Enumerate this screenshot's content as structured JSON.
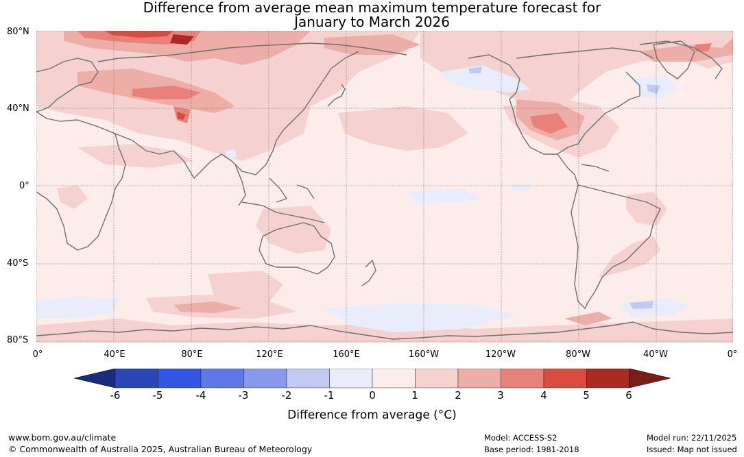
{
  "title": {
    "line1": "Difference from average mean maximum temperature forecast for",
    "line2": "January to March 2026"
  },
  "axes": {
    "lat_labels": [
      "80°N",
      "40°N",
      "0°",
      "40°S",
      "80°S"
    ],
    "lon_labels": [
      "0°",
      "40°E",
      "80°E",
      "120°E",
      "160°E",
      "160°W",
      "120°W",
      "80°W",
      "40°W",
      "0°"
    ]
  },
  "colorbar": {
    "title": "Difference from average (°C)",
    "ticks": [
      "-6",
      "-5",
      "-4",
      "-3",
      "-2",
      "-1",
      "0",
      "1",
      "2",
      "3",
      "4",
      "5",
      "6"
    ],
    "colors": [
      "#1b2a7a",
      "#2a46b8",
      "#3354e4",
      "#5f78e6",
      "#8898ea",
      "#c1caf2",
      "#e9edfb",
      "#fcecea",
      "#f5d2cf",
      "#eeaea8",
      "#e7817a",
      "#d94c40",
      "#ab2a22",
      "#7a1d17"
    ]
  },
  "footer": {
    "website": "www.bom.gov.au/climate",
    "copyright": "© Commonwealth of Australia 2025, Australian Bureau of Meteorology",
    "model": "Model: ACCESS-S2",
    "base_period": "Base period: 1981-2018",
    "model_run": "Model run: 22/11/2025",
    "issued": "Issued: Map not issued"
  }
}
